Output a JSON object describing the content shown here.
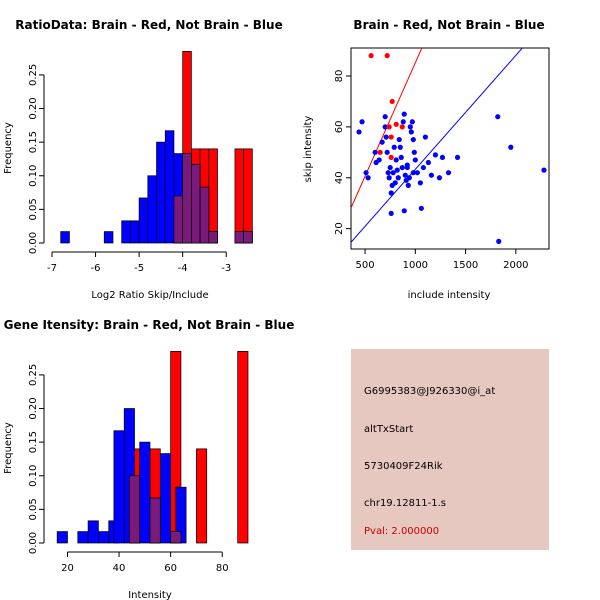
{
  "colors": {
    "brain": "#ff0000",
    "not_brain": "#0000ff",
    "overlap": "#7a1a7a",
    "panel_bg": "#e6c8c0",
    "pval_text": "#cc0000"
  },
  "chart_data": [
    {
      "type": "histogram",
      "title": "RatioData: Brain - Red, Not Brain - Blue",
      "xlabel": "Log2 Ratio Skip/Include",
      "ylabel": "Frequency",
      "xlim": [
        -7.0,
        -2.5
      ],
      "ylim": [
        0,
        0.29
      ],
      "xticks": [
        -7,
        -6,
        -5,
        -4,
        -3
      ],
      "yticks": [
        0.0,
        0.05,
        0.1,
        0.15,
        0.2,
        0.25
      ],
      "bin_width": 0.2,
      "series": [
        {
          "name": "Brain",
          "color": "red",
          "bins": [
            {
              "x0": -4.2,
              "value": 0.07
            },
            {
              "x0": -4.0,
              "value": 0.285
            },
            {
              "x0": -3.8,
              "value": 0.14
            },
            {
              "x0": -3.6,
              "value": 0.14
            },
            {
              "x0": -3.4,
              "value": 0.14
            },
            {
              "x0": -2.8,
              "value": 0.14
            },
            {
              "x0": -2.6,
              "value": 0.14
            }
          ]
        },
        {
          "name": "Not Brain",
          "color": "blue",
          "bins": [
            {
              "x0": -6.8,
              "value": 0.017
            },
            {
              "x0": -5.8,
              "value": 0.017
            },
            {
              "x0": -5.4,
              "value": 0.033
            },
            {
              "x0": -5.2,
              "value": 0.033
            },
            {
              "x0": -5.0,
              "value": 0.067
            },
            {
              "x0": -4.8,
              "value": 0.1
            },
            {
              "x0": -4.6,
              "value": 0.15
            },
            {
              "x0": -4.4,
              "value": 0.167
            },
            {
              "x0": -4.2,
              "value": 0.133
            },
            {
              "x0": -4.0,
              "value": 0.133
            },
            {
              "x0": -3.8,
              "value": 0.117
            },
            {
              "x0": -3.6,
              "value": 0.083
            },
            {
              "x0": -3.4,
              "value": 0.017
            },
            {
              "x0": -2.8,
              "value": 0.017
            },
            {
              "x0": -2.6,
              "value": 0.017
            }
          ]
        }
      ]
    },
    {
      "type": "scatter",
      "title": "Brain - Red, Not Brain - Blue",
      "xlabel": "include intensity",
      "ylabel": "skip intensity",
      "xlim": [
        360,
        2330
      ],
      "ylim": [
        12,
        91
      ],
      "xticks": [
        500,
        1000,
        1500,
        2000
      ],
      "yticks": [
        20,
        40,
        60,
        80
      ],
      "series": [
        {
          "name": "Brain",
          "color": "red",
          "points": [
            [
              560,
              88
            ],
            [
              720,
              88
            ],
            [
              770,
              70
            ],
            [
              740,
              60
            ],
            [
              810,
              61
            ],
            [
              870,
              60
            ],
            [
              650,
              50
            ],
            [
              760,
              56
            ],
            [
              760,
              48
            ]
          ]
        },
        {
          "name": "Not Brain",
          "color": "blue",
          "points": [
            [
              440,
              58
            ],
            [
              470,
              62
            ],
            [
              510,
              42
            ],
            [
              530,
              40
            ],
            [
              600,
              50
            ],
            [
              610,
              46
            ],
            [
              670,
              54
            ],
            [
              700,
              60
            ],
            [
              700,
              64
            ],
            [
              710,
              56
            ],
            [
              720,
              50
            ],
            [
              740,
              40
            ],
            [
              750,
              44
            ],
            [
              760,
              34
            ],
            [
              770,
              37
            ],
            [
              780,
              42
            ],
            [
              790,
              52
            ],
            [
              800,
              38
            ],
            [
              810,
              47
            ],
            [
              820,
              43
            ],
            [
              830,
              40
            ],
            [
              840,
              55
            ],
            [
              850,
              52
            ],
            [
              860,
              48
            ],
            [
              870,
              44
            ],
            [
              880,
              62
            ],
            [
              890,
              65
            ],
            [
              900,
              41
            ],
            [
              910,
              39
            ],
            [
              920,
              44
            ],
            [
              930,
              37
            ],
            [
              940,
              40
            ],
            [
              950,
              60
            ],
            [
              960,
              58
            ],
            [
              970,
              62
            ],
            [
              980,
              55
            ],
            [
              990,
              50
            ],
            [
              1000,
              47
            ],
            [
              1020,
              42
            ],
            [
              1050,
              38
            ],
            [
              1060,
              28
            ],
            [
              1080,
              44
            ],
            [
              1100,
              56
            ],
            [
              1130,
              46
            ],
            [
              1160,
              41
            ],
            [
              1200,
              49
            ],
            [
              1240,
              40
            ],
            [
              1270,
              48
            ],
            [
              1330,
              42
            ],
            [
              1420,
              48
            ],
            [
              1820,
              64
            ],
            [
              1830,
              15
            ],
            [
              1950,
              52
            ],
            [
              2280,
              43
            ],
            [
              760,
              26
            ],
            [
              890,
              27
            ],
            [
              920,
              45
            ],
            [
              640,
              47
            ],
            [
              730,
              42
            ],
            [
              980,
              42
            ]
          ]
        }
      ],
      "lines": [
        {
          "name": "Brain fit",
          "color": "red",
          "slope": 0.0892,
          "intercept": -4.0
        },
        {
          "name": "Not Brain fit",
          "color": "blue",
          "slope": 0.0448,
          "intercept": -1.5
        }
      ]
    },
    {
      "type": "histogram",
      "title": "Gene Itensity: Brain - Red, Not Brain - Blue",
      "xlabel": "Intensity",
      "ylabel": "Frequency",
      "xlim": [
        14,
        90
      ],
      "ylim": [
        0,
        0.29
      ],
      "xticks": [
        20,
        40,
        60,
        80
      ],
      "yticks": [
        0.0,
        0.05,
        0.1,
        0.15,
        0.2,
        0.25
      ],
      "bin_width": 4,
      "series": [
        {
          "name": "Brain",
          "color": "red",
          "bins": [
            {
              "x0": 44,
              "value": 0.14
            },
            {
              "x0": 52,
              "value": 0.14
            },
            {
              "x0": 60,
              "value": 0.285
            },
            {
              "x0": 70,
              "value": 0.14
            },
            {
              "x0": 86,
              "value": 0.285
            }
          ]
        },
        {
          "name": "Not Brain",
          "color": "blue",
          "bins": [
            {
              "x0": 16,
              "value": 0.017
            },
            {
              "x0": 24,
              "value": 0.017
            },
            {
              "x0": 28,
              "value": 0.033
            },
            {
              "x0": 32,
              "value": 0.017
            },
            {
              "x0": 36,
              "value": 0.033
            },
            {
              "x0": 38,
              "value": 0.167
            },
            {
              "x0": 42,
              "value": 0.2
            },
            {
              "x0": 44,
              "value": 0.1
            },
            {
              "x0": 48,
              "value": 0.15
            },
            {
              "x0": 52,
              "value": 0.067
            },
            {
              "x0": 56,
              "value": 0.133
            },
            {
              "x0": 60,
              "value": 0.017
            },
            {
              "x0": 62,
              "value": 0.083
            }
          ]
        }
      ]
    }
  ],
  "info": {
    "probe": "G6995383@J926330@i_at",
    "event": "altTxStart",
    "gene": "5730409F24Rik",
    "cluster": "chr19.12811-1.s",
    "pval": "Pval: 2.000000"
  }
}
